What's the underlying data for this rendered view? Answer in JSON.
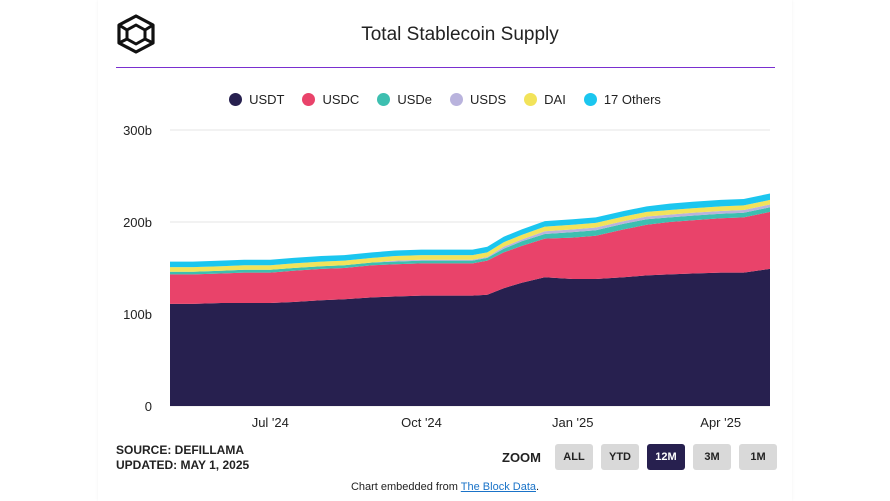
{
  "header": {
    "title": "Total Stablecoin Supply",
    "logo_icon": "the-block-cube-logo"
  },
  "legend": [
    {
      "name": "USDT",
      "color": "#27204f"
    },
    {
      "name": "USDC",
      "color": "#e9436a"
    },
    {
      "name": "USDe",
      "color": "#3dbfb0"
    },
    {
      "name": "USDS",
      "color": "#b9b3dd"
    },
    {
      "name": "DAI",
      "color": "#f2e35a"
    },
    {
      "name": "17 Others",
      "color": "#1bc6ef"
    }
  ],
  "chart_data": {
    "type": "area",
    "stacked": true,
    "title": "Total Stablecoin Supply",
    "x": [
      "2024-05-01",
      "2024-05-15",
      "2024-06-01",
      "2024-06-15",
      "2024-07-01",
      "2024-07-15",
      "2024-08-01",
      "2024-08-15",
      "2024-09-01",
      "2024-09-15",
      "2024-10-01",
      "2024-10-15",
      "2024-11-01",
      "2024-11-10",
      "2024-11-20",
      "2024-12-01",
      "2024-12-15",
      "2025-01-01",
      "2025-01-15",
      "2025-02-01",
      "2025-02-15",
      "2025-03-01",
      "2025-03-15",
      "2025-04-01",
      "2025-04-15",
      "2025-05-01"
    ],
    "series": [
      {
        "name": "USDT",
        "values": [
          111,
          111,
          112,
          112,
          112,
          113,
          115,
          116,
          118,
          119,
          120,
          120,
          120,
          121,
          128,
          134,
          140,
          138,
          138,
          140,
          142,
          143,
          144,
          145,
          145,
          149
        ]
      },
      {
        "name": "USDC",
        "values": [
          32,
          32,
          32,
          33,
          33,
          34,
          34,
          34,
          35,
          35,
          35,
          35,
          35,
          37,
          39,
          40,
          42,
          45,
          47,
          52,
          55,
          57,
          58,
          59,
          60,
          62
        ]
      },
      {
        "name": "USDe",
        "values": [
          3,
          3,
          3,
          3,
          3,
          3,
          3,
          3,
          3,
          3,
          3,
          3,
          3,
          3,
          4,
          5,
          5,
          6,
          6,
          6,
          6,
          5,
          5,
          5,
          5,
          5
        ]
      },
      {
        "name": "USDS",
        "values": [
          0,
          0,
          0,
          0,
          0,
          0,
          0,
          0,
          0,
          1,
          1,
          1,
          1,
          1,
          2,
          2,
          3,
          3,
          3,
          3,
          3,
          3,
          3,
          3,
          3,
          3
        ]
      },
      {
        "name": "DAI",
        "values": [
          5,
          5,
          5,
          5,
          5,
          5,
          5,
          5,
          5,
          5,
          5,
          5,
          5,
          5,
          5,
          5,
          5,
          5,
          5,
          5,
          5,
          5,
          5,
          5,
          5,
          5
        ]
      },
      {
        "name": "17 Others",
        "values": [
          6,
          6,
          6,
          6,
          6,
          6,
          6,
          6,
          6,
          6,
          6,
          6,
          6,
          6,
          6,
          6,
          6,
          6,
          6,
          6,
          6,
          7,
          7,
          7,
          7,
          7
        ]
      }
    ],
    "x_ticks": [
      {
        "label": "Jul '24",
        "date": "2024-07-01"
      },
      {
        "label": "Oct '24",
        "date": "2024-10-01"
      },
      {
        "label": "Jan '25",
        "date": "2025-01-01"
      },
      {
        "label": "Apr '25",
        "date": "2025-04-01"
      }
    ],
    "y_ticks": [
      {
        "label": "0",
        "value": 0
      },
      {
        "label": "100b",
        "value": 100
      },
      {
        "label": "200b",
        "value": 200
      },
      {
        "label": "300b",
        "value": 300
      }
    ],
    "ylim": [
      0,
      300
    ],
    "xlim": [
      "2024-05-01",
      "2025-05-01"
    ],
    "grid": true,
    "legend_position": "top-center"
  },
  "footer": {
    "source": "SOURCE: DEFILLAMA",
    "updated": "UPDATED: MAY 1, 2025",
    "embed_prefix": "Chart embedded from ",
    "embed_link": "The Block Data",
    "embed_suffix": "."
  },
  "zoom": {
    "label": "ZOOM",
    "buttons": [
      "ALL",
      "YTD",
      "12M",
      "3M",
      "1M"
    ],
    "active": "12M"
  }
}
